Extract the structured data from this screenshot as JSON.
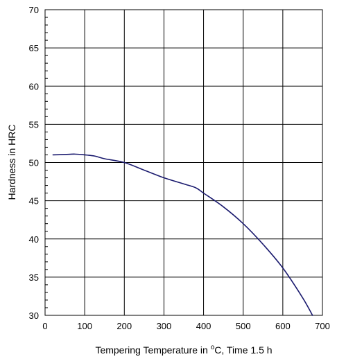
{
  "chart_data": {
    "type": "line",
    "title": "",
    "xlabel": "Tempering Temperature in °C, Time 1.5 h",
    "xlabel_parts": {
      "before": "Tempering Temperature in ",
      "sup": "o",
      "after": "C, Time 1.5 h"
    },
    "ylabel": "Hardness in HRC",
    "xlim": [
      0,
      700
    ],
    "ylim": [
      30,
      70
    ],
    "x_ticks": [
      0,
      100,
      200,
      300,
      400,
      500,
      600,
      700
    ],
    "y_ticks": [
      30,
      35,
      40,
      45,
      50,
      55,
      60,
      65,
      70
    ],
    "grid": true,
    "legend": "none",
    "series": [
      {
        "color": "#1a1a6e",
        "points": [
          [
            20,
            51.0
          ],
          [
            50,
            51.05
          ],
          [
            75,
            51.1
          ],
          [
            100,
            51.0
          ],
          [
            125,
            50.85
          ],
          [
            150,
            50.5
          ],
          [
            200,
            50.0
          ],
          [
            250,
            49.0
          ],
          [
            300,
            48.0
          ],
          [
            350,
            47.2
          ],
          [
            380,
            46.7
          ],
          [
            400,
            46.0
          ],
          [
            450,
            44.2
          ],
          [
            500,
            42.0
          ],
          [
            550,
            39.3
          ],
          [
            600,
            36.2
          ],
          [
            650,
            32.3
          ],
          [
            675,
            30.0
          ]
        ]
      }
    ]
  }
}
